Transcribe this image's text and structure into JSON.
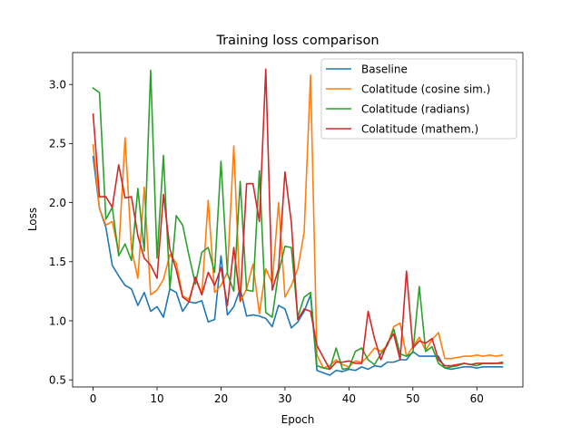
{
  "chart_data": {
    "type": "line",
    "title": "Training loss comparison",
    "xlabel": "Epoch",
    "ylabel": "Loss",
    "xlim": [
      -3.2,
      67.2
    ],
    "ylim": [
      0.44,
      3.27
    ],
    "xticks": [
      0,
      10,
      20,
      30,
      40,
      50,
      60
    ],
    "yticks": [
      0.5,
      1.0,
      1.5,
      2.0,
      2.5,
      3.0
    ],
    "xtick_labels": [
      "0",
      "10",
      "20",
      "30",
      "40",
      "50",
      "60"
    ],
    "ytick_labels": [
      "0.5",
      "1.0",
      "1.5",
      "2.0",
      "2.5",
      "3.0"
    ],
    "grid": false,
    "legend_position": "top-right",
    "series": [
      {
        "name": "Baseline",
        "color": "#1f77b4",
        "x": [
          0,
          1,
          2,
          3,
          4,
          5,
          6,
          7,
          8,
          9,
          10,
          11,
          12,
          13,
          14,
          15,
          16,
          17,
          18,
          19,
          20,
          21,
          22,
          23,
          24,
          25,
          26,
          27,
          28,
          29,
          30,
          31,
          32,
          33,
          34,
          35,
          36,
          37,
          38,
          39,
          40,
          41,
          42,
          43,
          44,
          45,
          46,
          47,
          48,
          49,
          50,
          51,
          52,
          53,
          54,
          55,
          56,
          57,
          58,
          59,
          60,
          61,
          62,
          63,
          64
        ],
        "values": [
          2.39,
          1.95,
          1.79,
          1.47,
          1.38,
          1.3,
          1.27,
          1.13,
          1.24,
          1.08,
          1.12,
          1.03,
          1.27,
          1.24,
          1.08,
          1.16,
          1.15,
          1.17,
          0.99,
          1.01,
          1.55,
          1.05,
          1.12,
          1.27,
          1.04,
          1.05,
          1.04,
          1.02,
          0.95,
          1.13,
          1.1,
          0.94,
          0.99,
          1.08,
          1.22,
          0.58,
          0.56,
          0.54,
          0.58,
          0.57,
          0.59,
          0.58,
          0.61,
          0.59,
          0.62,
          0.61,
          0.65,
          0.65,
          0.67,
          0.67,
          0.74,
          0.7,
          0.7,
          0.7,
          0.7,
          0.6,
          0.59,
          0.6,
          0.61,
          0.61,
          0.6,
          0.61,
          0.61,
          0.61,
          0.61
        ]
      },
      {
        "name": "Colatitude (cosine sim.)",
        "color": "#ff7f0e",
        "x": [
          0,
          1,
          2,
          3,
          4,
          5,
          6,
          7,
          8,
          9,
          10,
          11,
          12,
          13,
          14,
          15,
          16,
          17,
          18,
          19,
          20,
          21,
          22,
          23,
          24,
          25,
          26,
          27,
          28,
          29,
          30,
          31,
          32,
          33,
          34,
          35,
          36,
          37,
          38,
          39,
          40,
          41,
          42,
          43,
          44,
          45,
          46,
          47,
          48,
          49,
          50,
          51,
          52,
          53,
          54,
          55,
          56,
          57,
          58,
          59,
          60,
          61,
          62,
          63,
          64
        ],
        "values": [
          2.49,
          1.95,
          1.81,
          1.84,
          1.58,
          2.55,
          1.61,
          1.36,
          2.13,
          1.22,
          1.26,
          1.35,
          1.56,
          1.49,
          1.21,
          1.18,
          1.36,
          1.22,
          2.02,
          1.24,
          1.3,
          1.41,
          2.48,
          1.16,
          1.27,
          1.48,
          1.06,
          1.44,
          1.32,
          2.0,
          1.2,
          1.3,
          1.44,
          1.75,
          3.08,
          0.71,
          0.6,
          0.62,
          0.67,
          0.63,
          0.61,
          0.66,
          0.65,
          0.7,
          0.77,
          0.74,
          0.79,
          0.95,
          0.98,
          0.7,
          0.78,
          0.86,
          0.75,
          0.84,
          0.9,
          0.68,
          0.68,
          0.69,
          0.7,
          0.7,
          0.71,
          0.7,
          0.71,
          0.7,
          0.71
        ]
      },
      {
        "name": "Colatitude (radians)",
        "color": "#2ca02c",
        "x": [
          0,
          1,
          2,
          3,
          4,
          5,
          6,
          7,
          8,
          9,
          10,
          11,
          12,
          13,
          14,
          15,
          16,
          17,
          18,
          19,
          20,
          21,
          22,
          23,
          24,
          25,
          26,
          27,
          28,
          29,
          30,
          31,
          32,
          33,
          34,
          35,
          36,
          37,
          38,
          39,
          40,
          41,
          42,
          43,
          44,
          45,
          46,
          47,
          48,
          49,
          50,
          51,
          52,
          53,
          54,
          55,
          56,
          57,
          58,
          59,
          60,
          61,
          62,
          63,
          64
        ],
        "values": [
          2.97,
          2.93,
          1.86,
          1.96,
          1.55,
          1.65,
          1.51,
          2.12,
          1.59,
          3.12,
          1.53,
          2.4,
          1.27,
          1.89,
          1.81,
          1.55,
          1.31,
          1.58,
          1.62,
          1.41,
          2.35,
          1.4,
          1.25,
          2.18,
          1.26,
          1.25,
          2.27,
          1.07,
          1.03,
          1.41,
          1.63,
          1.62,
          1.03,
          1.2,
          1.24,
          0.62,
          0.6,
          0.59,
          0.77,
          0.59,
          0.6,
          0.74,
          0.77,
          0.67,
          0.63,
          0.72,
          0.79,
          0.93,
          0.72,
          0.7,
          0.73,
          1.29,
          0.74,
          0.78,
          0.64,
          0.6,
          0.61,
          0.62,
          0.64,
          0.63,
          0.62,
          0.64,
          0.64,
          0.64,
          0.65
        ]
      },
      {
        "name": "Colatitude (mathem.)",
        "color": "#d62728",
        "x": [
          0,
          1,
          2,
          3,
          4,
          5,
          6,
          7,
          8,
          9,
          10,
          11,
          12,
          13,
          14,
          15,
          16,
          17,
          18,
          19,
          20,
          21,
          22,
          23,
          24,
          25,
          26,
          27,
          28,
          29,
          30,
          31,
          32,
          33,
          34,
          35,
          36,
          37,
          38,
          39,
          40,
          41,
          42,
          43,
          44,
          45,
          46,
          47,
          48,
          49,
          50,
          51,
          52,
          53,
          54,
          55,
          56,
          57,
          58,
          59,
          60,
          61,
          62,
          63,
          64
        ],
        "values": [
          2.75,
          2.05,
          2.05,
          1.96,
          2.32,
          2.04,
          2.05,
          1.72,
          1.53,
          1.47,
          1.36,
          2.07,
          1.61,
          1.43,
          1.2,
          1.16,
          1.37,
          1.22,
          1.41,
          1.3,
          1.45,
          1.13,
          1.62,
          1.17,
          2.16,
          2.16,
          1.84,
          3.13,
          1.26,
          1.44,
          2.26,
          1.83,
          1.01,
          1.1,
          1.08,
          0.79,
          0.69,
          0.59,
          0.65,
          0.65,
          0.66,
          0.64,
          0.64,
          1.08,
          0.85,
          0.67,
          0.81,
          0.89,
          0.67,
          1.42,
          0.77,
          0.83,
          0.81,
          0.85,
          0.67,
          0.62,
          0.62,
          0.63,
          0.64,
          0.63,
          0.64,
          0.64,
          0.64,
          0.64,
          0.64
        ]
      }
    ]
  }
}
